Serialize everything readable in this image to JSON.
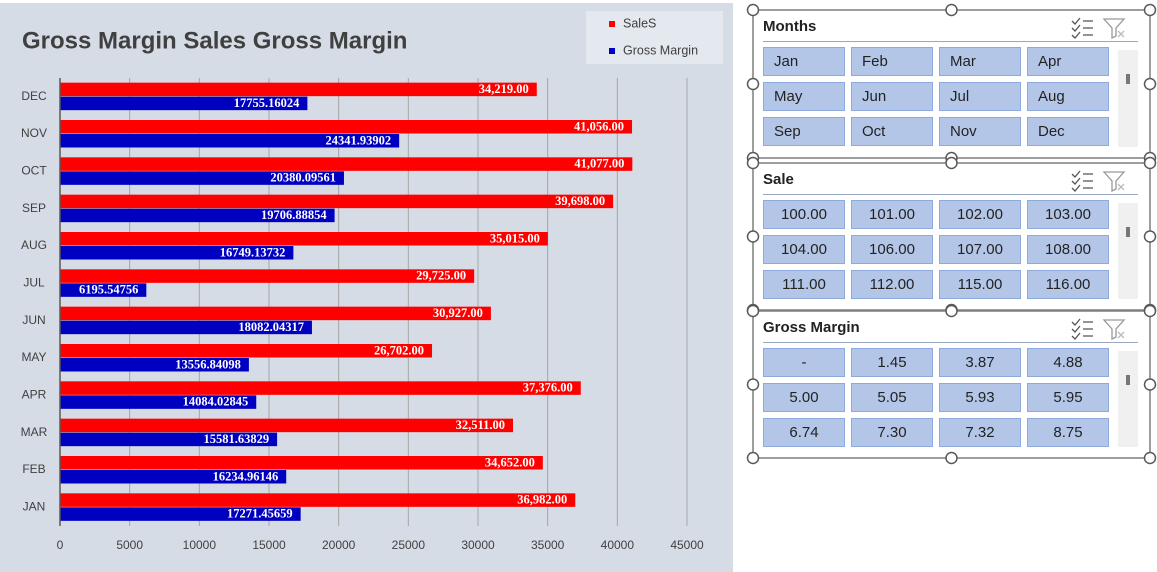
{
  "chart_data": {
    "type": "barh",
    "title": "Gross Margin Sales Gross Margin",
    "categories": [
      "JAN",
      "FEB",
      "MAR",
      "APR",
      "MAY",
      "JUN",
      "JUL",
      "AUG",
      "SEP",
      "OCT",
      "NOV",
      "DEC"
    ],
    "series": [
      {
        "name": "SaleS",
        "color": "#ff0000",
        "values": [
          36982,
          34652,
          32511,
          37376,
          26702,
          30927,
          29725,
          35015,
          39698,
          41077,
          41056,
          34219
        ],
        "value_labels": [
          "36,982.00",
          "34,652.00",
          "32,511.00",
          "37,376.00",
          "26,702.00",
          "30,927.00",
          "29,725.00",
          "35,015.00",
          "39,698.00",
          "41,077.00",
          "41,056.00",
          "34,219.00"
        ]
      },
      {
        "name": "Gross Margin",
        "color": "#0000c0",
        "values": [
          17271.45659,
          16234.96146,
          15581.63829,
          14084.02845,
          13556.84098,
          18082.04317,
          6195.54756,
          16749.13732,
          19706.88854,
          20380.09561,
          24341.93902,
          17755.16024
        ]
      }
    ],
    "xlim": [
      0,
      45000
    ],
    "xticks": [
      0,
      5000,
      10000,
      15000,
      20000,
      25000,
      30000,
      35000,
      40000,
      45000
    ],
    "grid": true,
    "legend": "top-right"
  },
  "slicers": [
    {
      "title": "Months",
      "items": [
        "Jan",
        "Feb",
        "Mar",
        "Apr",
        "May",
        "Jun",
        "Jul",
        "Aug",
        "Sep",
        "Oct",
        "Nov",
        "Dec"
      ]
    },
    {
      "title": "Sale",
      "items": [
        "100.00",
        "101.00",
        "102.00",
        "103.00",
        "104.00",
        "106.00",
        "107.00",
        "108.00",
        "111.00",
        "112.00",
        "115.00",
        "116.00"
      ]
    },
    {
      "title": "Gross Margin",
      "items": [
        "-",
        "1.45",
        "3.87",
        "4.88",
        "5.00",
        "5.05",
        "5.93",
        "5.95",
        "6.74",
        "7.30",
        "7.32",
        "8.75"
      ]
    }
  ]
}
